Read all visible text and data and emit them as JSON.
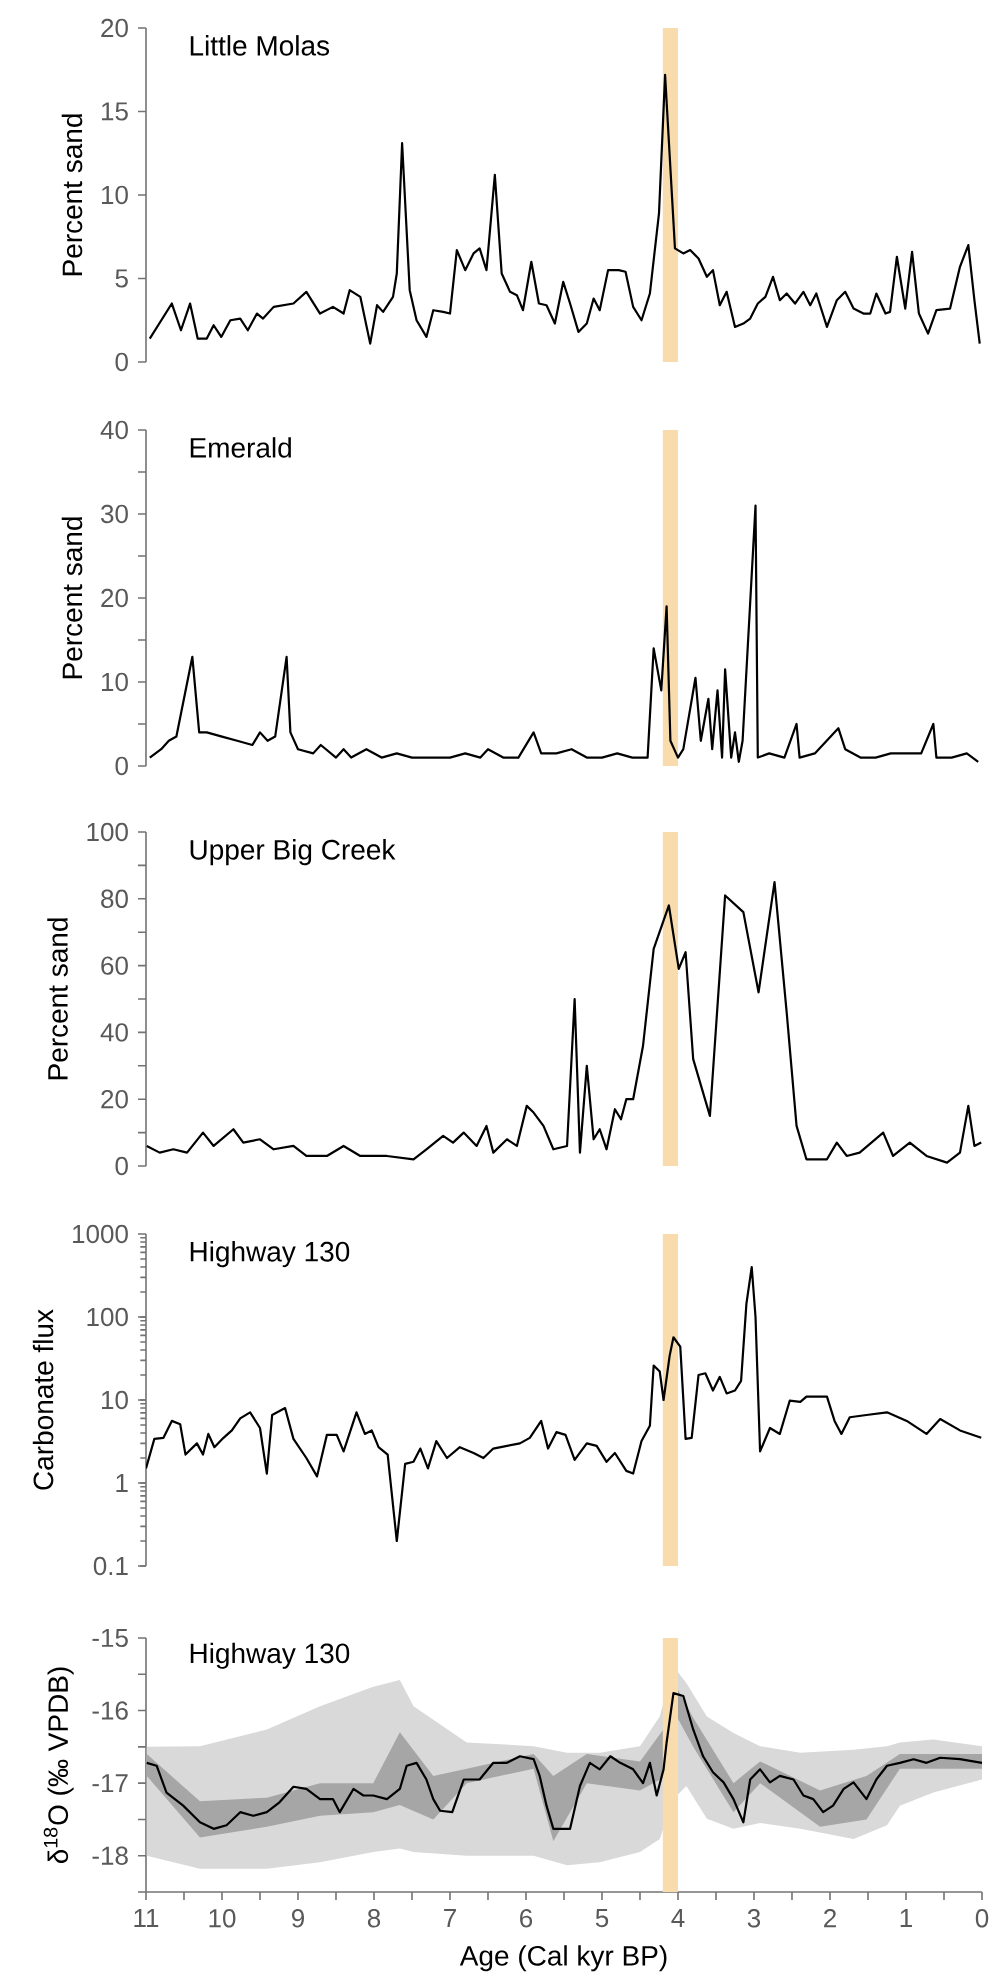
{
  "chart_data": [
    {
      "type": "line",
      "title": "Little Molas",
      "ylabel": "Percent sand",
      "xlim": [
        11,
        0
      ],
      "ylim": [
        0,
        20
      ],
      "yticks": [
        0,
        5,
        10,
        15,
        20
      ],
      "tick_labels": "y",
      "bands": [
        {
          "axis": "x",
          "from": 4.2,
          "to": 4.0,
          "color": "#f8dcae"
        }
      ],
      "series": [
        {
          "color": "#000000",
          "x": [
            10.95,
            10.66,
            10.54,
            10.42,
            10.32,
            10.2,
            10.11,
            10.01,
            9.89,
            9.76,
            9.66,
            9.54,
            9.46,
            9.32,
            9.06,
            8.89,
            8.71,
            8.54,
            8.4,
            8.32,
            8.18,
            8.05,
            7.96,
            7.88,
            7.75,
            7.7,
            7.63,
            7.53,
            7.44,
            7.31,
            7.22,
            7.09,
            7.0,
            6.91,
            6.8,
            6.69,
            6.61,
            6.52,
            6.41,
            6.32,
            6.21,
            6.12,
            6.04,
            5.93,
            5.83,
            5.73,
            5.62,
            5.51,
            5.42,
            5.31,
            5.2,
            5.11,
            5.03,
            4.92,
            4.78,
            4.69,
            4.59,
            4.48,
            4.37,
            4.25,
            4.17,
            4.04,
            3.93,
            3.84,
            3.73,
            3.62,
            3.54,
            3.45,
            3.36,
            3.25,
            3.14,
            3.05,
            2.95,
            2.85,
            2.75,
            2.66,
            2.57,
            2.46,
            2.35,
            2.26,
            2.18,
            2.04,
            1.91,
            1.8,
            1.69,
            1.56,
            1.47,
            1.39,
            1.27,
            1.21,
            1.12,
            1.01,
            0.92,
            0.83,
            0.71,
            0.6,
            0.42,
            0.29,
            0.18,
            0.1,
            0.03
          ],
          "values": [
            1.4,
            3.5,
            1.9,
            3.5,
            1.4,
            1.4,
            2.2,
            1.5,
            2.5,
            2.6,
            1.9,
            2.9,
            2.6,
            3.3,
            3.5,
            4.2,
            2.9,
            3.3,
            2.9,
            4.3,
            3.9,
            1.1,
            3.4,
            3.0,
            3.9,
            5.3,
            13.1,
            4.3,
            2.5,
            1.5,
            3.1,
            3.0,
            2.9,
            6.7,
            5.5,
            6.5,
            6.8,
            5.5,
            11.2,
            5.3,
            4.2,
            4.0,
            3.1,
            6.0,
            3.5,
            3.4,
            2.3,
            4.8,
            3.5,
            1.8,
            2.3,
            3.8,
            3.1,
            5.5,
            5.5,
            5.4,
            3.3,
            2.5,
            4.1,
            8.9,
            17.2,
            6.8,
            6.5,
            6.7,
            6.2,
            5.1,
            5.5,
            3.4,
            4.2,
            2.1,
            2.3,
            2.6,
            3.5,
            3.9,
            5.1,
            3.7,
            4.1,
            3.5,
            4.2,
            3.4,
            4.1,
            2.1,
            3.7,
            4.2,
            3.2,
            2.9,
            2.9,
            4.1,
            2.9,
            3.0,
            6.3,
            3.2,
            6.6,
            2.9,
            1.7,
            3.1,
            3.2,
            5.7,
            7.0,
            3.7,
            1.1
          ]
        }
      ]
    },
    {
      "type": "line",
      "title": "Emerald",
      "ylabel": "Percent sand",
      "xlim": [
        11,
        0
      ],
      "ylim": [
        0,
        40
      ],
      "yticks": [
        0,
        {
          "value": 5,
          "label": null
        },
        10,
        {
          "value": 15,
          "label": null
        },
        20,
        {
          "value": 25,
          "label": null
        },
        30,
        {
          "value": 35,
          "label": null
        },
        40
      ],
      "tick_labels": "y",
      "bands": [
        {
          "axis": "x",
          "from": 4.2,
          "to": 4.0,
          "color": "#f8dcae"
        }
      ],
      "series": [
        {
          "color": "#000000",
          "x": [
            10.95,
            10.8,
            10.7,
            10.6,
            10.39,
            10.3,
            10.2,
            10.0,
            9.8,
            9.6,
            9.5,
            9.4,
            9.3,
            9.15,
            9.1,
            9.0,
            8.8,
            8.7,
            8.5,
            8.4,
            8.3,
            8.1,
            7.9,
            7.7,
            7.5,
            7.3,
            7.0,
            6.8,
            6.6,
            6.5,
            6.3,
            6.1,
            5.9,
            5.8,
            5.6,
            5.4,
            5.2,
            5.0,
            4.8,
            4.6,
            4.4,
            4.32,
            4.22,
            4.15,
            4.1,
            4.0,
            3.93,
            3.77,
            3.7,
            3.6,
            3.55,
            3.48,
            3.42,
            3.38,
            3.3,
            3.25,
            3.2,
            3.15,
            2.98,
            2.95,
            2.8,
            2.6,
            2.44,
            2.4,
            2.2,
            1.89,
            1.8,
            1.6,
            1.4,
            1.2,
            0.8,
            0.64,
            0.6,
            0.4,
            0.2,
            0.05
          ],
          "values": [
            1,
            2,
            3,
            3.5,
            13,
            4,
            4,
            3.5,
            3,
            2.5,
            4,
            3,
            3.5,
            13,
            4,
            2,
            1.5,
            2.5,
            1,
            2,
            1,
            2,
            1,
            1.5,
            1,
            1,
            1,
            1.5,
            1,
            2,
            1,
            1,
            4,
            1.5,
            1.5,
            2,
            1,
            1,
            1.5,
            1,
            1,
            14,
            9,
            19,
            3,
            1,
            2,
            10.5,
            3,
            8,
            2,
            9,
            1,
            11.5,
            1,
            4,
            0.5,
            3,
            31,
            1,
            1.5,
            1,
            5,
            1,
            1.5,
            4.5,
            2,
            1,
            1,
            1.5,
            1.5,
            5,
            1,
            1,
            1.5,
            0.5
          ]
        }
      ]
    },
    {
      "type": "line",
      "title": "Upper Big Creek",
      "ylabel": "Percent sand",
      "xlim": [
        11,
        0
      ],
      "ylim": [
        0,
        100
      ],
      "yticks": [
        0,
        {
          "value": 10,
          "label": null
        },
        20,
        {
          "value": 30,
          "label": null
        },
        40,
        {
          "value": 50,
          "label": null
        },
        60,
        {
          "value": 70,
          "label": null
        },
        80,
        {
          "value": 90,
          "label": null
        },
        100
      ],
      "tick_labels": "y",
      "bands": [
        {
          "axis": "x",
          "from": 4.2,
          "to": 4.0,
          "color": "#f8dcae"
        }
      ],
      "series": [
        {
          "color": "#000000",
          "x": [
            10.99,
            10.82,
            10.64,
            10.46,
            10.25,
            10.11,
            9.85,
            9.72,
            9.5,
            9.32,
            9.06,
            8.89,
            8.62,
            8.4,
            8.18,
            7.83,
            7.48,
            7.31,
            7.09,
            6.96,
            6.82,
            6.65,
            6.52,
            6.43,
            6.25,
            6.12,
            5.99,
            5.9,
            5.77,
            5.64,
            5.46,
            5.36,
            5.29,
            5.2,
            5.11,
            5.03,
            4.94,
            4.83,
            4.75,
            4.68,
            4.59,
            4.46,
            4.32,
            4.12,
            3.99,
            3.9,
            3.8,
            3.58,
            3.38,
            3.14,
            2.94,
            2.73,
            2.57,
            2.44,
            2.31,
            2.04,
            1.91,
            1.78,
            1.61,
            1.3,
            1.17,
            0.95,
            0.73,
            0.46,
            0.29,
            0.18,
            0.1,
            0.01
          ],
          "values": [
            6,
            4,
            5,
            4,
            10,
            6,
            11,
            7,
            8,
            5,
            6,
            3,
            3,
            6,
            3,
            3,
            2,
            5,
            9,
            7,
            10,
            6,
            12,
            4,
            8,
            6,
            18,
            16,
            12,
            5,
            6,
            50,
            4,
            30,
            8,
            11,
            5,
            17,
            14,
            20,
            20,
            36,
            65,
            78,
            59,
            64,
            32,
            15,
            81,
            76,
            52,
            85,
            46,
            12,
            2,
            2,
            7,
            3,
            4,
            10,
            3,
            7,
            3,
            1,
            4,
            18,
            6,
            7
          ]
        }
      ]
    },
    {
      "type": "line",
      "title": "Highway 130",
      "ylabel": "Carbonate flux",
      "xlim": [
        11,
        0
      ],
      "ylim": [
        0.1,
        1000
      ],
      "log": "y",
      "yticks": [
        0.1,
        1,
        10,
        100,
        1000
      ],
      "tick_labels": "y",
      "bands": [
        {
          "axis": "x",
          "from": 4.2,
          "to": 4.0,
          "color": "#f8dcae"
        }
      ],
      "series": [
        {
          "color": "#000000",
          "x": [
            11.0,
            10.89,
            10.77,
            10.66,
            10.55,
            10.48,
            10.33,
            10.25,
            10.18,
            10.1,
            9.98,
            9.87,
            9.76,
            9.63,
            9.5,
            9.41,
            9.34,
            9.17,
            9.06,
            8.89,
            8.75,
            8.62,
            8.49,
            8.4,
            8.23,
            8.12,
            8.03,
            7.94,
            7.82,
            7.7,
            7.59,
            7.48,
            7.39,
            7.29,
            7.18,
            7.04,
            6.87,
            6.69,
            6.56,
            6.43,
            6.25,
            6.08,
            5.95,
            5.8,
            5.71,
            5.6,
            5.48,
            5.36,
            5.2,
            5.07,
            4.94,
            4.83,
            4.68,
            4.59,
            4.48,
            4.37,
            4.32,
            4.24,
            4.19,
            4.11,
            4.06,
            3.97,
            3.9,
            3.82,
            3.73,
            3.64,
            3.54,
            3.45,
            3.36,
            3.25,
            3.17,
            3.1,
            3.03,
            2.98,
            2.92,
            2.79,
            2.66,
            2.53,
            2.39,
            2.31,
            2.04,
            1.94,
            1.85,
            1.74,
            1.52,
            1.25,
            0.99,
            0.73,
            0.55,
            0.29,
            0.01
          ],
          "values": [
            1.5,
            3.4,
            3.5,
            5.6,
            5.1,
            2.2,
            3.0,
            2.2,
            3.9,
            2.7,
            3.5,
            4.3,
            6.0,
            7.1,
            4.6,
            1.3,
            6.6,
            8.0,
            3.4,
            2.0,
            1.2,
            3.8,
            3.8,
            2.4,
            7.1,
            3.9,
            4.3,
            2.7,
            2.2,
            0.2,
            1.7,
            1.8,
            2.6,
            1.5,
            3.2,
            2.0,
            2.7,
            2.3,
            2.0,
            2.6,
            2.8,
            3.0,
            3.5,
            5.6,
            2.6,
            4.1,
            3.8,
            1.9,
            3.0,
            2.8,
            1.8,
            2.3,
            1.4,
            1.3,
            3.2,
            4.9,
            26,
            22,
            10,
            34,
            57,
            44,
            3.4,
            3.5,
            20,
            21,
            13,
            19,
            12,
            13,
            17,
            144,
            400,
            100,
            2.4,
            4.6,
            3.9,
            9.8,
            9.5,
            11,
            11,
            5.6,
            3.9,
            6.2,
            6.6,
            7.1,
            5.6,
            3.9,
            5.9,
            4.3,
            3.5
          ]
        }
      ]
    },
    {
      "type": "line",
      "title": "Highway 130",
      "ylabel": "δ$^{18}$O (‰ VPDB)",
      "xlabel": "Age (Cal kyr BP)",
      "xlim": [
        11,
        0
      ],
      "ylim": [
        -18.5,
        -15
      ],
      "xticks": [
        11,
        {
          "value": 10.5,
          "label": null
        },
        10,
        {
          "value": 9.5,
          "label": null
        },
        9,
        {
          "value": 8.5,
          "label": null
        },
        8,
        {
          "value": 7.5,
          "label": null
        },
        7,
        {
          "value": 6.5,
          "label": null
        },
        6,
        {
          "value": 5.5,
          "label": null
        },
        5,
        {
          "value": 4.5,
          "label": null
        },
        4,
        {
          "value": 3.5,
          "label": null
        },
        3,
        {
          "value": 2.5,
          "label": null
        },
        2,
        {
          "value": 1.5,
          "label": null
        },
        1,
        {
          "value": 0.5,
          "label": null
        },
        0
      ],
      "yticks": [
        {
          "value": -18.5,
          "label": null
        },
        -18,
        {
          "value": -17.5,
          "label": null
        },
        -17,
        {
          "value": -16.5,
          "label": null
        },
        -16,
        {
          "value": -15.5,
          "label": null
        },
        -15
      ],
      "bands": [
        {
          "axis": "x",
          "from": 4.2,
          "to": 4.0,
          "color": "#f8dcae"
        }
      ],
      "series": [
        {
          "type": "line",
          "color": "#d9d9d9",
          "x": [
            10.99,
            10.29,
            9.41,
            8.71,
            8.01,
            7.66,
            7.48,
            6.78,
            5.9,
            5.46,
            5.03,
            4.5,
            4.24,
            4.06,
            3.89,
            3.62,
            3.27,
            2.92,
            2.39,
            1.69,
            1.25,
            1.08,
            0.64,
            0
          ],
          "values": [
            null,
            null,
            null,
            null,
            null,
            null,
            null,
            null,
            null,
            null,
            null,
            null,
            null,
            null,
            null,
            null,
            null,
            null,
            null,
            null,
            null,
            null,
            null,
            null
          ],
          "upper": [
            -16.5,
            -16.49,
            -16.26,
            -15.94,
            -15.67,
            -15.58,
            -15.94,
            -16.44,
            -16.49,
            -16.58,
            -16.58,
            -16.49,
            -16.08,
            -15.39,
            -15.62,
            -16.08,
            -16.31,
            -16.49,
            -16.58,
            -16.54,
            -16.49,
            -16.44,
            -16.4,
            -16.49
          ],
          "lower": [
            -18.0,
            -18.18,
            -18.18,
            -18.09,
            -17.95,
            -17.9,
            -17.95,
            -18.0,
            -18.0,
            -18.13,
            -18.09,
            -17.95,
            -17.77,
            -17.22,
            -17.04,
            -17.49,
            -17.63,
            -17.55,
            -17.63,
            -17.77,
            -17.58,
            -17.31,
            -17.13,
            -16.95
          ]
        },
        {
          "type": "line",
          "color": "#a6a6a6",
          "x": [
            10.99,
            10.29,
            9.41,
            8.71,
            8.01,
            7.66,
            7.22,
            6.78,
            5.9,
            5.64,
            5.2,
            4.5,
            4.15,
            4.06,
            3.8,
            3.27,
            2.92,
            2.13,
            1.52,
            1.08,
            0
          ],
          "values": [
            null,
            null,
            null,
            null,
            null,
            null,
            null,
            null,
            null,
            null,
            null,
            null,
            null,
            null,
            null,
            null,
            null,
            null,
            null,
            null,
            null
          ],
          "upper": [
            -16.6,
            -17.25,
            -17.2,
            -17.0,
            -17.0,
            -16.3,
            -16.9,
            -16.8,
            -16.6,
            -16.9,
            -16.6,
            -16.7,
            -16.2,
            -15.6,
            -16.1,
            -17.0,
            -16.7,
            -17.1,
            -16.9,
            -16.6,
            -16.6
          ],
          "lower": [
            -16.9,
            -17.75,
            -17.6,
            -17.45,
            -17.4,
            -17.3,
            -17.5,
            -17.0,
            -16.8,
            -17.8,
            -17.0,
            -17.1,
            -16.9,
            -16.0,
            -16.5,
            -17.4,
            -17.0,
            -17.6,
            -17.5,
            -16.8,
            -16.8
          ]
        },
        {
          "type": "line",
          "color": "#000000",
          "x": [
            10.99,
            10.86,
            10.73,
            10.51,
            10.29,
            10.11,
            9.94,
            9.76,
            9.59,
            9.41,
            9.24,
            9.06,
            8.89,
            8.71,
            8.54,
            8.45,
            8.27,
            8.14,
            8.01,
            7.83,
            7.66,
            7.57,
            7.44,
            7.31,
            7.22,
            7.13,
            6.97,
            6.82,
            6.61,
            6.43,
            6.25,
            6.08,
            5.9,
            5.82,
            5.73,
            5.64,
            5.51,
            5.42,
            5.29,
            5.16,
            5.03,
            4.89,
            4.76,
            4.59,
            4.46,
            4.37,
            4.28,
            4.19,
            4.15,
            4.06,
            3.93,
            3.8,
            3.67,
            3.54,
            3.4,
            3.27,
            3.14,
            3.05,
            2.92,
            2.79,
            2.66,
            2.48,
            2.35,
            2.22,
            2.09,
            1.96,
            1.82,
            1.69,
            1.52,
            1.39,
            1.25,
            1.08,
            0.9,
            0.73,
            0.55,
            0.29,
            0
          ],
          "values": [
            -16.72,
            -16.76,
            -17.13,
            -17.31,
            -17.54,
            -17.63,
            -17.58,
            -17.4,
            -17.45,
            -17.4,
            -17.26,
            -17.05,
            -17.08,
            -17.22,
            -17.22,
            -17.4,
            -17.08,
            -17.17,
            -17.17,
            -17.22,
            -17.08,
            -16.76,
            -16.72,
            -16.95,
            -17.22,
            -17.38,
            -17.4,
            -16.95,
            -16.95,
            -16.72,
            -16.72,
            -16.63,
            -16.67,
            -16.9,
            -17.31,
            -17.63,
            -17.63,
            -17.63,
            -17.04,
            -16.72,
            -16.81,
            -16.63,
            -16.72,
            -16.81,
            -17.0,
            -16.72,
            -17.17,
            -16.81,
            -16.44,
            -15.76,
            -15.8,
            -16.26,
            -16.63,
            -16.85,
            -16.99,
            -17.22,
            -17.54,
            -16.95,
            -16.81,
            -16.99,
            -16.9,
            -16.95,
            -17.17,
            -17.22,
            -17.4,
            -17.31,
            -17.08,
            -16.99,
            -17.22,
            -16.95,
            -16.76,
            -16.72,
            -16.67,
            -16.72,
            -16.65,
            -16.67,
            -16.72
          ]
        }
      ]
    }
  ]
}
